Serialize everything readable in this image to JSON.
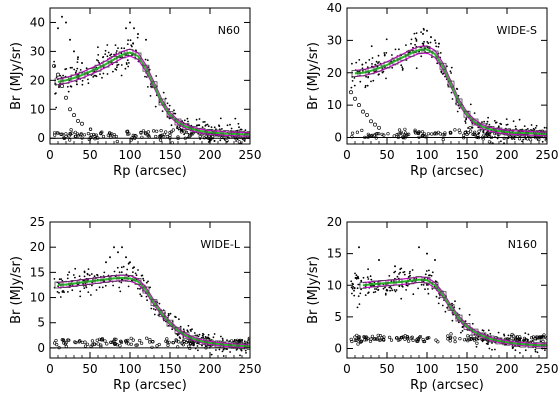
{
  "chart_data": [
    {
      "type": "scatter",
      "panel_label": "N60",
      "xlabel": "Rp (arcsec)",
      "ylabel": "Br (MJy/sr)",
      "xlim": [
        0,
        250
      ],
      "ylim": [
        -2,
        45
      ],
      "xticks": [
        0,
        50,
        100,
        150,
        200,
        250
      ],
      "yticks": [
        0,
        10,
        20,
        30,
        40
      ],
      "zero_line": true,
      "profile": {
        "r": [
          10,
          20,
          30,
          40,
          50,
          60,
          70,
          80,
          90,
          100,
          110,
          120,
          130,
          140,
          150,
          160,
          170,
          180,
          190,
          200,
          210,
          220,
          230,
          240,
          250
        ],
        "br": [
          19.5,
          20.0,
          20.8,
          21.8,
          23.0,
          24.2,
          25.6,
          27.2,
          28.8,
          29.6,
          28.4,
          24.2,
          18.5,
          12.5,
          8.2,
          5.6,
          4.0,
          3.0,
          2.4,
          2.0,
          1.8,
          1.6,
          1.5,
          1.4,
          1.3
        ]
      },
      "background_level": 1.0,
      "extra_points": [
        [
          10,
          38
        ],
        [
          15,
          42
        ],
        [
          20,
          40
        ],
        [
          25,
          34
        ],
        [
          30,
          30
        ],
        [
          35,
          28
        ],
        [
          40,
          26
        ],
        [
          95,
          38
        ],
        [
          100,
          40
        ],
        [
          105,
          38
        ],
        [
          110,
          36
        ],
        [
          120,
          34
        ]
      ],
      "background_outliers": [
        [
          5,
          25
        ],
        [
          10,
          22
        ],
        [
          15,
          18
        ],
        [
          20,
          14
        ],
        [
          25,
          10
        ],
        [
          30,
          8
        ],
        [
          35,
          6
        ],
        [
          40,
          5
        ]
      ]
    },
    {
      "type": "scatter",
      "panel_label": "WIDE-S",
      "xlabel": "Rp (arcsec)",
      "ylabel": "Br (MJy/sr)",
      "xlim": [
        0,
        250
      ],
      "ylim": [
        -2,
        40
      ],
      "xticks": [
        0,
        50,
        100,
        150,
        200,
        250
      ],
      "yticks": [
        0,
        10,
        20,
        30,
        40
      ],
      "zero_line": true,
      "profile": {
        "r": [
          10,
          20,
          30,
          40,
          50,
          60,
          70,
          80,
          90,
          100,
          110,
          120,
          130,
          140,
          150,
          160,
          170,
          180,
          190,
          200,
          210,
          220,
          230,
          240,
          250
        ],
        "br": [
          19.8,
          20.0,
          20.6,
          21.4,
          22.4,
          23.6,
          24.8,
          26.0,
          27.0,
          27.2,
          25.8,
          22.0,
          16.5,
          11.0,
          7.2,
          4.8,
          3.3,
          2.5,
          2.0,
          1.7,
          1.5,
          1.4,
          1.3,
          1.2,
          1.1
        ]
      },
      "background_level": 1.0,
      "extra_points": [
        [
          95,
          32
        ],
        [
          100,
          33
        ],
        [
          105,
          31
        ],
        [
          110,
          30
        ],
        [
          115,
          29
        ]
      ],
      "background_outliers": [
        [
          5,
          14
        ],
        [
          10,
          12
        ],
        [
          15,
          10
        ],
        [
          20,
          8
        ],
        [
          25,
          7
        ],
        [
          30,
          5
        ],
        [
          35,
          4
        ],
        [
          40,
          3
        ]
      ]
    },
    {
      "type": "scatter",
      "panel_label": "WIDE-L",
      "xlabel": "Rp (arcsec)",
      "ylabel": "Br (MJy/sr)",
      "xlim": [
        0,
        250
      ],
      "ylim": [
        -2,
        25
      ],
      "xticks": [
        0,
        50,
        100,
        150,
        200,
        250
      ],
      "yticks": [
        0,
        5,
        10,
        15,
        20,
        25
      ],
      "zero_line": true,
      "profile": {
        "r": [
          10,
          20,
          30,
          40,
          50,
          60,
          70,
          80,
          90,
          100,
          110,
          120,
          130,
          140,
          150,
          160,
          170,
          180,
          190,
          200,
          210,
          220,
          230,
          240,
          250
        ],
        "br": [
          12.5,
          12.6,
          12.8,
          13.0,
          13.2,
          13.4,
          13.6,
          13.8,
          13.9,
          13.8,
          13.2,
          11.5,
          9.0,
          6.8,
          4.9,
          3.5,
          2.5,
          1.8,
          1.3,
          1.0,
          0.8,
          0.6,
          0.5,
          0.4,
          0.3
        ]
      },
      "background_level": 1.0,
      "extra_points": [
        [
          70,
          17
        ],
        [
          75,
          18
        ],
        [
          80,
          20
        ],
        [
          85,
          19
        ],
        [
          90,
          20
        ],
        [
          95,
          18
        ],
        [
          100,
          17
        ],
        [
          105,
          16
        ]
      ],
      "background_outliers": []
    },
    {
      "type": "scatter",
      "panel_label": "N160",
      "xlabel": "Rp (arcsec)",
      "ylabel": "Br (MJy/sr)",
      "xlim": [
        0,
        250
      ],
      "ylim": [
        -1.5,
        20
      ],
      "xticks": [
        0,
        50,
        100,
        150,
        200,
        250
      ],
      "yticks": [
        0,
        5,
        10,
        15,
        20
      ],
      "zero_line": false,
      "profile": {
        "r": [
          20,
          35,
          45,
          55,
          65,
          80,
          90,
          100,
          110,
          120,
          130,
          140,
          150,
          160,
          170,
          180,
          190,
          200,
          210,
          220,
          230,
          240,
          250
        ],
        "br": [
          10.0,
          10.2,
          10.3,
          10.4,
          10.5,
          10.7,
          10.9,
          10.8,
          10.0,
          8.5,
          6.5,
          4.8,
          3.5,
          2.6,
          2.0,
          1.5,
          1.2,
          1.0,
          0.8,
          0.7,
          0.6,
          0.5,
          0.5
        ]
      },
      "background_level": 1.5,
      "extra_points": [
        [
          15,
          16
        ],
        [
          40,
          14
        ],
        [
          60,
          13
        ],
        [
          90,
          16
        ],
        [
          100,
          15
        ],
        [
          110,
          14
        ]
      ],
      "background_outliers": []
    }
  ]
}
